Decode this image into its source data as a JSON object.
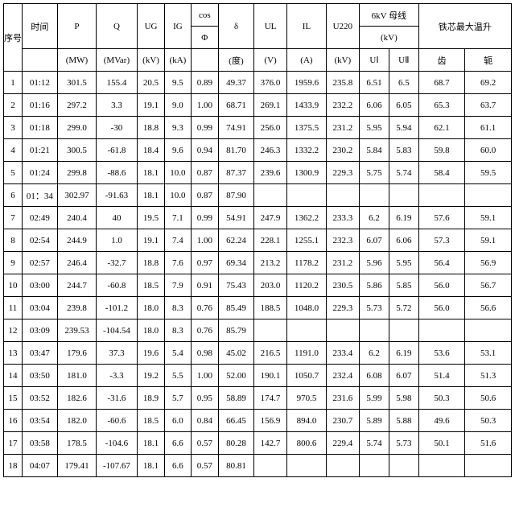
{
  "header": {
    "seq": "序号",
    "time": "时间",
    "P": "P",
    "P_unit": "(MW)",
    "Q": "Q",
    "Q_unit": "(MVar)",
    "UG": "UG",
    "UG_unit": "(kV)",
    "IG": "IG",
    "IG_unit": "(kA)",
    "cosPhi_top": "cos",
    "cosPhi_bot": "Φ",
    "delta": "δ",
    "delta_unit": "(度)",
    "UL": "UL",
    "UL_unit": "(V)",
    "IL": "IL",
    "IL_unit": "(A)",
    "U220": "U220",
    "U220_unit": "(kV)",
    "bus6kV_top": "6kV 母线",
    "bus6kV_bot": "(kV)",
    "UI": "UⅠ",
    "UII": "UⅡ",
    "temp": "铁芯最大温升",
    "tooth": "齿",
    "yoke": "轭"
  },
  "rows": [
    {
      "n": "1",
      "t": "01:12",
      "P": "301.5",
      "Q": "155.4",
      "UG": "20.5",
      "IG": "9.5",
      "cos": "0.89",
      "d": "49.37",
      "UL": "376.0",
      "IL": "1959.6",
      "U220": "235.8",
      "UI": "6.51",
      "UII": "6.5",
      "tooth": "68.7",
      "yoke": "69.2"
    },
    {
      "n": "2",
      "t": "01:16",
      "P": "297.2",
      "Q": "3.3",
      "UG": "19.1",
      "IG": "9.0",
      "cos": "1.00",
      "d": "68.71",
      "UL": "269.1",
      "IL": "1433.9",
      "U220": "232.2",
      "UI": "6.06",
      "UII": "6.05",
      "tooth": "65.3",
      "yoke": "63.7"
    },
    {
      "n": "3",
      "t": "01:18",
      "P": "299.0",
      "Q": "-30",
      "UG": "18.8",
      "IG": "9.3",
      "cos": "0.99",
      "d": "74.91",
      "UL": "256.0",
      "IL": "1375.5",
      "U220": "231.2",
      "UI": "5.95",
      "UII": "5.94",
      "tooth": "62.1",
      "yoke": "61.1"
    },
    {
      "n": "4",
      "t": "01:21",
      "P": "300.5",
      "Q": "-61.8",
      "UG": "18.4",
      "IG": "9.6",
      "cos": "0.94",
      "d": "81.70",
      "UL": "246.3",
      "IL": "1332.2",
      "U220": "230.2",
      "UI": "5.84",
      "UII": "5.83",
      "tooth": "59.8",
      "yoke": "60.0"
    },
    {
      "n": "5",
      "t": "01:24",
      "P": "299.8",
      "Q": "-88.6",
      "UG": "18.1",
      "IG": "10.0",
      "cos": "0.87",
      "d": "87.37",
      "UL": "239.6",
      "IL": "1300.9",
      "U220": "229.3",
      "UI": "5.75",
      "UII": "5.74",
      "tooth": "58.4",
      "yoke": "59.5"
    },
    {
      "n": "6",
      "t": "01：34",
      "P": "302.97",
      "Q": "-91.63",
      "UG": "18.1",
      "IG": "10.0",
      "cos": "0.87",
      "d": "87.90",
      "UL": "",
      "IL": "",
      "U220": "",
      "UI": "",
      "UII": "",
      "tooth": "",
      "yoke": ""
    },
    {
      "n": "7",
      "t": "02:49",
      "P": "240.4",
      "Q": "40",
      "UG": "19.5",
      "IG": "7.1",
      "cos": "0.99",
      "d": "54.91",
      "UL": "247.9",
      "IL": "1362.2",
      "U220": "233.3",
      "UI": "6.2",
      "UII": "6.19",
      "tooth": "57.6",
      "yoke": "59.1"
    },
    {
      "n": "8",
      "t": "02:54",
      "P": "244.9",
      "Q": "1.0",
      "UG": "19.1",
      "IG": "7.4",
      "cos": "1.00",
      "d": "62.24",
      "UL": "228.1",
      "IL": "1255.1",
      "U220": "232.3",
      "UI": "6.07",
      "UII": "6.06",
      "tooth": "57.3",
      "yoke": "59.1"
    },
    {
      "n": "9",
      "t": "02:57",
      "P": "246.4",
      "Q": "-32.7",
      "UG": "18.8",
      "IG": "7.6",
      "cos": "0.97",
      "d": "69.34",
      "UL": "213.2",
      "IL": "1178.2",
      "U220": "231.2",
      "UI": "5.96",
      "UII": "5.95",
      "tooth": "56.4",
      "yoke": "56.9"
    },
    {
      "n": "10",
      "t": "03:00",
      "P": "244.7",
      "Q": "-60.8",
      "UG": "18.5",
      "IG": "7.9",
      "cos": "0.91",
      "d": "75.43",
      "UL": "203.0",
      "IL": "1120.2",
      "U220": "230.5",
      "UI": "5.86",
      "UII": "5.85",
      "tooth": "56.0",
      "yoke": "56.7"
    },
    {
      "n": "11",
      "t": "03:04",
      "P": "239.8",
      "Q": "-101.2",
      "UG": "18.0",
      "IG": "8.3",
      "cos": "0.76",
      "d": "85.49",
      "UL": "188.5",
      "IL": "1048.0",
      "U220": "229.3",
      "UI": "5.73",
      "UII": "5.72",
      "tooth": "56.0",
      "yoke": "56.6"
    },
    {
      "n": "12",
      "t": "03:09",
      "P": "239.53",
      "Q": "-104.54",
      "UG": "18.0",
      "IG": "8.3",
      "cos": "0.76",
      "d": "85.79",
      "UL": "",
      "IL": "",
      "U220": "",
      "UI": "",
      "UII": "",
      "tooth": "",
      "yoke": ""
    },
    {
      "n": "13",
      "t": "03:47",
      "P": "179.6",
      "Q": "37.3",
      "UG": "19.6",
      "IG": "5.4",
      "cos": "0.98",
      "d": "45.02",
      "UL": "216.5",
      "IL": "1191.0",
      "U220": "233.4",
      "UI": "6.2",
      "UII": "6.19",
      "tooth": "53.6",
      "yoke": "53.1"
    },
    {
      "n": "14",
      "t": "03:50",
      "P": "181.0",
      "Q": "-3.3",
      "UG": "19.2",
      "IG": "5.5",
      "cos": "1.00",
      "d": "52.00",
      "UL": "190.1",
      "IL": "1050.7",
      "U220": "232.4",
      "UI": "6.08",
      "UII": "6.07",
      "tooth": "51.4",
      "yoke": "51.3"
    },
    {
      "n": "15",
      "t": "03:52",
      "P": "182.6",
      "Q": "-31.6",
      "UG": "18.9",
      "IG": "5.7",
      "cos": "0.95",
      "d": "58.89",
      "UL": "174.7",
      "IL": "970.5",
      "U220": "231.6",
      "UI": "5.99",
      "UII": "5.98",
      "tooth": "50.3",
      "yoke": "50.6"
    },
    {
      "n": "16",
      "t": "03:54",
      "P": "182.0",
      "Q": "-60.6",
      "UG": "18.5",
      "IG": "6.0",
      "cos": "0.84",
      "d": "66.45",
      "UL": "156.9",
      "IL": "894.0",
      "U220": "230.7",
      "UI": "5.89",
      "UII": "5.88",
      "tooth": "49.6",
      "yoke": "50.3"
    },
    {
      "n": "17",
      "t": "03:58",
      "P": "178.5",
      "Q": "-104.6",
      "UG": "18.1",
      "IG": "6.6",
      "cos": "0.57",
      "d": "80.28",
      "UL": "142.7",
      "IL": "800.6",
      "U220": "229.4",
      "UI": "5.74",
      "UII": "5.73",
      "tooth": "50.1",
      "yoke": "51.6"
    },
    {
      "n": "18",
      "t": "04:07",
      "P": "179.41",
      "Q": "-107.67",
      "UG": "18.1",
      "IG": "6.6",
      "cos": "0.57",
      "d": "80.81",
      "UL": "",
      "IL": "",
      "U220": "",
      "UI": "",
      "UII": "",
      "tooth": "",
      "yoke": ""
    }
  ]
}
